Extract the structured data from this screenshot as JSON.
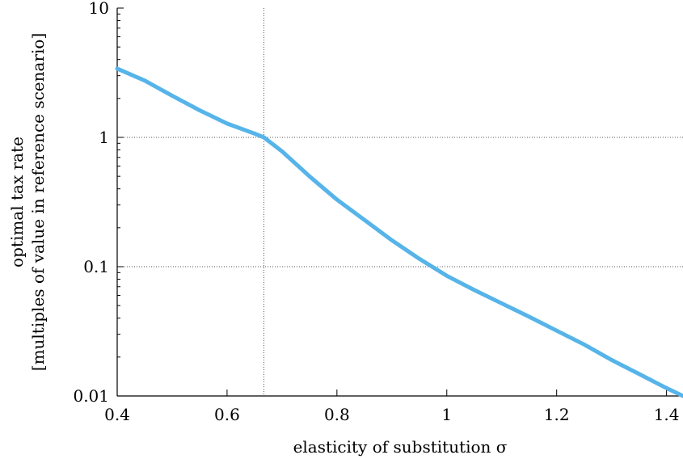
{
  "chart_data": {
    "type": "line",
    "title": "",
    "xlabel": "elasticity of substitution σ",
    "ylabel_lines": [
      "optimal tax rate",
      "[multiples of value in reference scenario]"
    ],
    "xscale": "linear",
    "yscale": "log",
    "xlim": [
      0.4,
      1.43
    ],
    "ylim": [
      0.01,
      10
    ],
    "x_ticks": [
      {
        "value": 0.4,
        "label": "0.4"
      },
      {
        "value": 0.6,
        "label": "0.6"
      },
      {
        "value": 0.8,
        "label": "0.8"
      },
      {
        "value": 1.0,
        "label": "1"
      },
      {
        "value": 1.2,
        "label": "1.2"
      },
      {
        "value": 1.4,
        "label": "1.4"
      }
    ],
    "y_ticks": [
      {
        "value": 0.01,
        "label": "0.01"
      },
      {
        "value": 0.1,
        "label": "0.1"
      },
      {
        "value": 1,
        "label": "1"
      },
      {
        "value": 10,
        "label": "10"
      }
    ],
    "grid": {
      "horizontal_dotted_at": [
        0.1,
        1
      ],
      "vertical_dotted_at": [
        0.667
      ]
    },
    "series": [
      {
        "color": "#56b4e9",
        "x": [
          0.4,
          0.45,
          0.5,
          0.55,
          0.6,
          0.65,
          0.667,
          0.7,
          0.75,
          0.8,
          0.85,
          0.9,
          0.95,
          1.0,
          1.05,
          1.1,
          1.15,
          1.2,
          1.25,
          1.3,
          1.35,
          1.4,
          1.43
        ],
        "y": [
          3.4,
          2.75,
          2.1,
          1.62,
          1.28,
          1.07,
          1.0,
          0.78,
          0.5,
          0.33,
          0.23,
          0.16,
          0.115,
          0.085,
          0.066,
          0.052,
          0.041,
          0.032,
          0.025,
          0.019,
          0.0148,
          0.0115,
          0.01
        ]
      }
    ]
  }
}
